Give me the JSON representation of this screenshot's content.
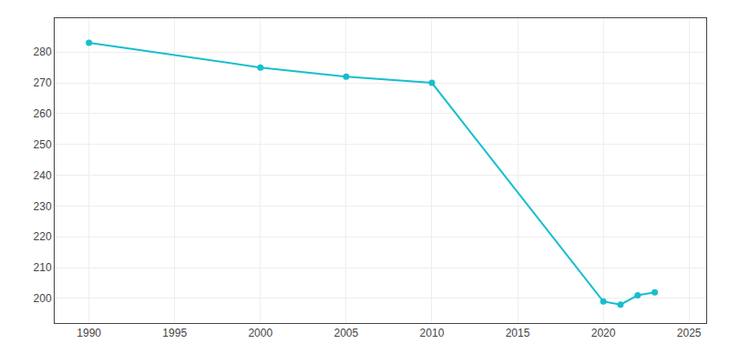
{
  "chart_data": {
    "type": "line",
    "x": [
      1990,
      2000,
      2005,
      2010,
      2020,
      2021,
      2022,
      2023
    ],
    "values": [
      283,
      275,
      272,
      270,
      199,
      198,
      201,
      202
    ],
    "color": "#17BECF",
    "marker": "circle",
    "xlim": [
      1988,
      2026
    ],
    "ylim": [
      192,
      291
    ],
    "xticks": [
      1990,
      1995,
      2000,
      2005,
      2010,
      2015,
      2020,
      2025
    ],
    "yticks": [
      200,
      210,
      220,
      230,
      240,
      250,
      260,
      270,
      280
    ],
    "grid": true
  }
}
